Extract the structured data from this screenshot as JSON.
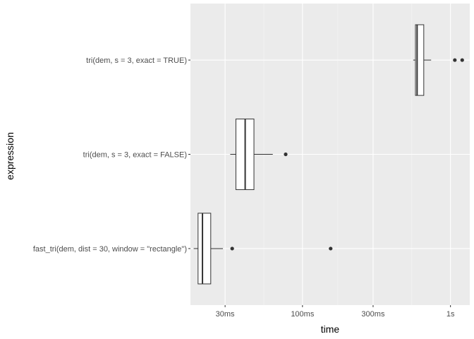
{
  "chart_data": {
    "type": "boxplot",
    "orientation": "horizontal",
    "xlabel": "time",
    "ylabel": "expression",
    "x_scale": "log10",
    "x_unit": "seconds",
    "xlim": [
      0.0175,
      1.35
    ],
    "x_ticks": [
      {
        "value": 0.03,
        "label": "30ms"
      },
      {
        "value": 0.1,
        "label": "100ms"
      },
      {
        "value": 0.3,
        "label": "300ms"
      },
      {
        "value": 1,
        "label": "1s"
      }
    ],
    "grid": true,
    "background": "#ebebeb",
    "categories": [
      "fast_tri(dem, dist = 30, window = \"rectangle\")",
      "tri(dem, s = 3, exact = FALSE)",
      "tri(dem, s = 3, exact = TRUE)"
    ],
    "boxes": [
      {
        "category": "fast_tri(dem, dist = 30, window = \"rectangle\")",
        "whisker_low": 0.0184,
        "q1": 0.0197,
        "median": 0.0211,
        "q3": 0.024,
        "whisker_high": 0.029,
        "outliers": [
          0.0335,
          0.155
        ]
      },
      {
        "category": "tri(dem, s = 3, exact = FALSE)",
        "whisker_low": 0.0325,
        "q1": 0.0355,
        "median": 0.041,
        "q3": 0.047,
        "whisker_high": 0.063,
        "outliers": [
          0.077
        ]
      },
      {
        "category": "tri(dem, s = 3, exact = TRUE)",
        "whisker_low": 0.56,
        "q1": 0.58,
        "median": 0.595,
        "q3": 0.66,
        "whisker_high": 0.74,
        "outliers": [
          1.07,
          1.2
        ]
      }
    ]
  }
}
